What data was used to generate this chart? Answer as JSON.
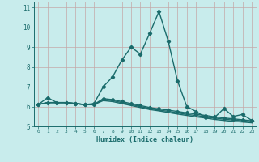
{
  "xlabel": "Humidex (Indice chaleur)",
  "background_color": "#c8ecec",
  "grid_color": "#c4a8a8",
  "line_color": "#1a6b6b",
  "x_values": [
    0,
    1,
    2,
    3,
    4,
    5,
    6,
    7,
    8,
    9,
    10,
    11,
    12,
    13,
    14,
    15,
    16,
    17,
    18,
    19,
    20,
    21,
    22,
    23
  ],
  "lines": [
    [
      6.1,
      6.45,
      6.2,
      6.2,
      6.15,
      6.1,
      6.15,
      7.0,
      7.5,
      8.35,
      9.0,
      8.65,
      9.7,
      10.8,
      9.3,
      7.3,
      6.0,
      5.75,
      5.45,
      5.45,
      5.9,
      5.5,
      5.6,
      5.3
    ],
    [
      6.1,
      6.2,
      6.2,
      6.2,
      6.15,
      6.1,
      6.1,
      6.4,
      6.35,
      6.25,
      6.15,
      6.05,
      5.95,
      5.88,
      5.82,
      5.75,
      5.68,
      5.62,
      5.55,
      5.48,
      5.42,
      5.38,
      5.33,
      5.28
    ],
    [
      6.1,
      6.2,
      6.2,
      6.2,
      6.15,
      6.1,
      6.1,
      6.35,
      6.3,
      6.2,
      6.1,
      6.0,
      5.9,
      5.82,
      5.76,
      5.68,
      5.6,
      5.55,
      5.48,
      5.42,
      5.36,
      5.32,
      5.28,
      5.22
    ],
    [
      6.1,
      6.2,
      6.2,
      6.2,
      6.15,
      6.1,
      6.1,
      6.3,
      6.25,
      6.15,
      6.05,
      5.95,
      5.85,
      5.78,
      5.7,
      5.62,
      5.55,
      5.48,
      5.42,
      5.35,
      5.3,
      5.25,
      5.22,
      5.18
    ]
  ],
  "markers": [
    true,
    true,
    false,
    false
  ],
  "marker_style": "D",
  "marker_size": 2.2,
  "line_width": 1.0,
  "ylim": [
    5.0,
    11.3
  ],
  "xlim": [
    -0.5,
    23.5
  ],
  "yticks": [
    5,
    6,
    7,
    8,
    9,
    10,
    11
  ],
  "xticks": [
    0,
    1,
    2,
    3,
    4,
    5,
    6,
    7,
    8,
    9,
    10,
    11,
    12,
    13,
    14,
    15,
    16,
    17,
    18,
    19,
    20,
    21,
    22,
    23
  ]
}
